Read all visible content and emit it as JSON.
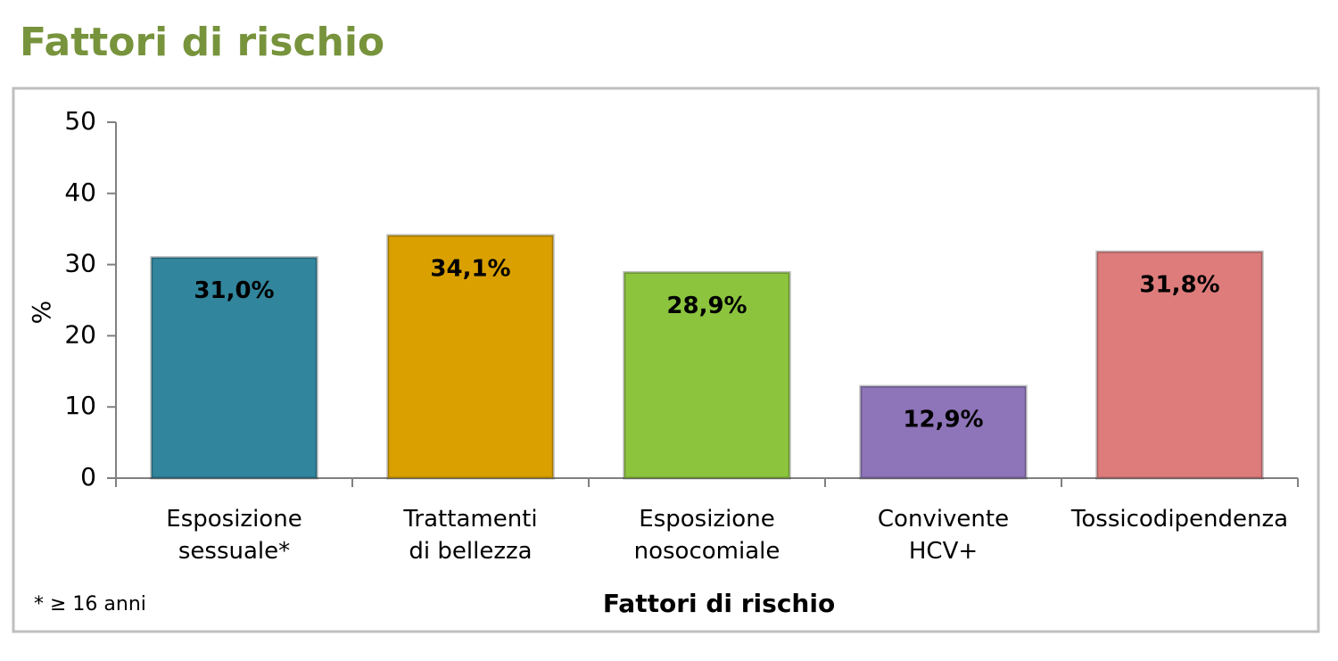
{
  "chart_data": {
    "type": "bar",
    "title": "Fattori di rischio",
    "xlabel": "Fattori di rischio",
    "ylabel": "%",
    "categories": [
      "Esposizione sessuale*",
      "Trattamenti di bellezza",
      "Esposizione nosocomiale",
      "Convivente HCV+",
      "Tossicodipendenza"
    ],
    "values": [
      31.0,
      34.1,
      28.9,
      12.9,
      31.8
    ],
    "value_labels": [
      "31,0%",
      "34,1%",
      "28,9%",
      "12,9%",
      "31,8%"
    ],
    "colors": [
      "#31859c",
      "#d9a000",
      "#8cc43e",
      "#8e74b8",
      "#de7c7c"
    ],
    "ylim": [
      0,
      50
    ],
    "yticks": [
      0,
      10,
      20,
      30,
      40,
      50
    ],
    "grid": false,
    "annotations": [
      "* ≥ 16 anni"
    ]
  }
}
